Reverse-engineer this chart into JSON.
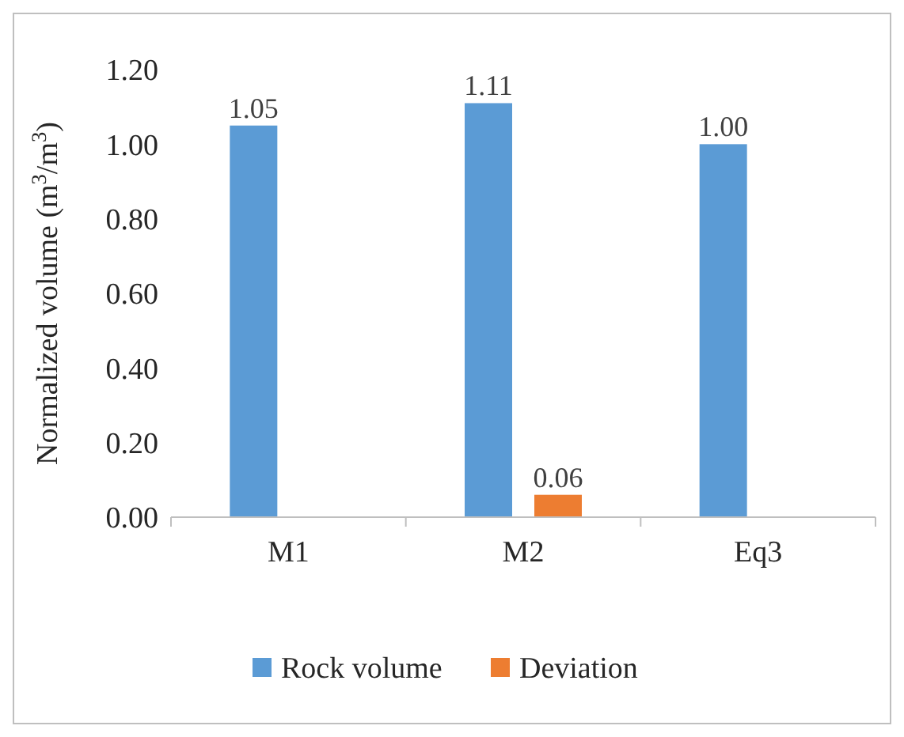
{
  "chart_data": {
    "type": "bar",
    "ylabel": "Normalized volume (m$^{3}$/m$^{3}$)",
    "categories": [
      "M1",
      "M2",
      "Eq3"
    ],
    "series": [
      {
        "name": "Rock volume",
        "color": "#5b9bd5",
        "values": [
          1.05,
          1.11,
          1.0
        ],
        "value_labels": [
          "1.05",
          "1.11",
          "1.00"
        ]
      },
      {
        "name": "Deviation",
        "color": "#ed7d31",
        "values": [
          null,
          0.06,
          null
        ],
        "value_labels": [
          null,
          "0.06",
          null
        ]
      }
    ],
    "ylim": [
      0,
      1.2
    ],
    "yticks": [
      {
        "value": 0,
        "label": "0.00"
      },
      {
        "value": 0.2,
        "label": "0.20"
      },
      {
        "value": 0.4,
        "label": "0.40"
      },
      {
        "value": 0.6,
        "label": "0.60"
      },
      {
        "value": 0.8,
        "label": "0.80"
      },
      {
        "value": 1,
        "label": "1.00"
      },
      {
        "value": 1.2,
        "label": "1.20"
      }
    ],
    "grid": false,
    "legend": "bottom"
  }
}
